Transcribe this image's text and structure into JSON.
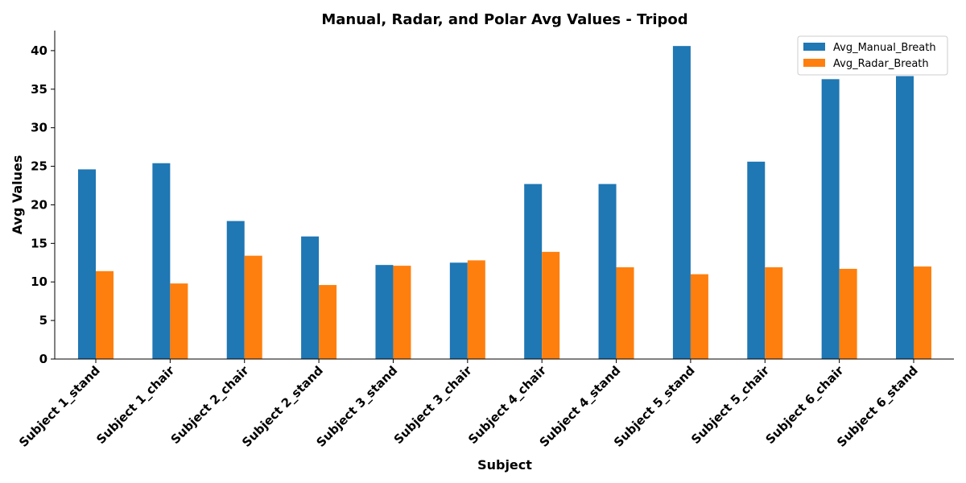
{
  "chart_data": {
    "type": "bar",
    "title": "Manual, Radar, and Polar Avg Values - Tripod",
    "xlabel": "Subject",
    "ylabel": "Avg Values",
    "categories": [
      "Subject 1_stand",
      "Subject 1_chair",
      "Subject 2_chair",
      "Subject 2_stand",
      "Subject 3_stand",
      "Subject 3_chair",
      "Subject 4_chair",
      "Subject 4_stand",
      "Subject 5_stand",
      "Subject 5_chair",
      "Subject 6_chair",
      "Subject 6_stand"
    ],
    "series": [
      {
        "name": "Avg_Manual_Breath",
        "color": "#1f77b4",
        "values": [
          24.6,
          25.4,
          17.9,
          15.9,
          12.2,
          12.5,
          22.7,
          22.7,
          40.6,
          25.6,
          36.3,
          36.7
        ]
      },
      {
        "name": "Avg_Radar_Breath",
        "color": "#ff7f0e",
        "values": [
          11.4,
          9.8,
          13.4,
          9.6,
          12.1,
          12.8,
          13.9,
          11.9,
          11.0,
          11.9,
          11.7,
          12.0
        ]
      }
    ],
    "yticks": [
      0,
      5,
      10,
      15,
      20,
      25,
      30,
      35,
      40
    ],
    "ylim": [
      0,
      42.6
    ],
    "grid": false,
    "legend_position": "top-right"
  }
}
